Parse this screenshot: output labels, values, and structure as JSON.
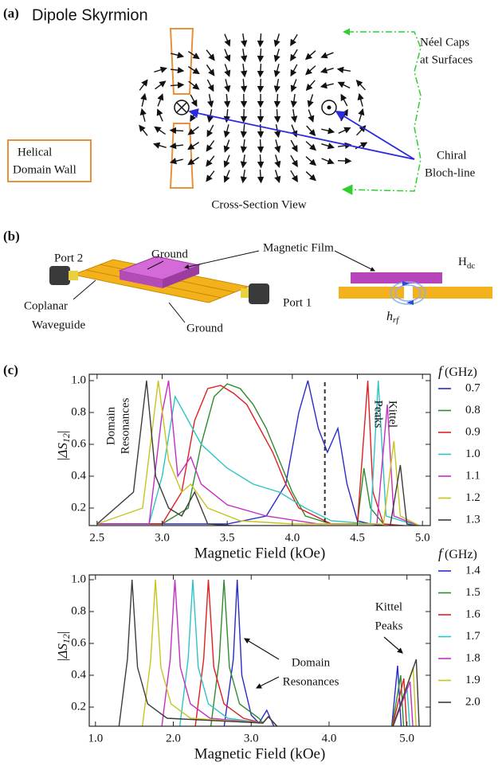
{
  "panel_a": {
    "label": "(a)",
    "title": "Dipole Skyrmion",
    "neel_caps": [
      "Néel Caps",
      "at Surfaces"
    ],
    "helical_wall": [
      "Helical",
      "Domain Wall"
    ],
    "bloch_line": [
      "Chiral",
      "Bloch-line"
    ],
    "view": "Cross-Section View"
  },
  "panel_b": {
    "label": "(b)",
    "port2": "Port 2",
    "ground_top": "Ground",
    "magnetic_film": "Magnetic Film",
    "port1": "Port 1",
    "waveguide": [
      "Coplanar",
      "Waveguide"
    ],
    "ground_bottom": "Ground",
    "h_dc": {
      "base": "H",
      "sub": "dc"
    },
    "h_rf": {
      "base": "h",
      "sub": "rf"
    }
  },
  "panel_c_label": "(c)",
  "chart_data": [
    {
      "type": "line",
      "xlabel": "Magnetic Field (kOe)",
      "ylabel": {
        "base": "|ΔS",
        "sub": "12",
        "end": "|"
      },
      "legend_title": {
        "var": "f",
        "unit": "(GHz)"
      },
      "xlim": [
        2.44,
        5.06
      ],
      "ylim": [
        0.09,
        1.04
      ],
      "xticks": [
        2.5,
        {
          "value": 3,
          "label": "3.0"
        },
        3.5,
        {
          "value": 4,
          "label": "4.0"
        },
        4.5,
        {
          "value": 5,
          "label": "5.0"
        }
      ],
      "yticks": [
        0.2,
        0.4,
        0.6,
        0.8,
        {
          "value": 1,
          "label": "1.0"
        }
      ],
      "vline": 4.25,
      "annotations": [
        [
          "Domain",
          "Resonances"
        ],
        [
          "Kittel",
          "Peaks"
        ]
      ],
      "series": [
        {
          "name": "0.7",
          "color": "#2b2bc8",
          "x": [
            2.5,
            3.0,
            3.5,
            3.8,
            3.95,
            4.05,
            4.12,
            4.2,
            4.27,
            4.35,
            4.42,
            4.5,
            4.6,
            4.8,
            5.0
          ],
          "values": [
            0.1,
            0.1,
            0.1,
            0.15,
            0.35,
            0.8,
            1.0,
            0.7,
            0.55,
            0.7,
            0.35,
            0.12,
            0.1,
            0.08,
            0.08
          ]
        },
        {
          "name": "0.8",
          "color": "#2e8b2e",
          "x": [
            2.5,
            3.0,
            3.2,
            3.3,
            3.4,
            3.5,
            3.6,
            3.7,
            3.8,
            3.9,
            4.0,
            4.1,
            4.3,
            4.5,
            4.55,
            4.6,
            4.7,
            5.0
          ],
          "values": [
            0.1,
            0.1,
            0.2,
            0.6,
            0.9,
            0.98,
            0.95,
            0.85,
            0.7,
            0.5,
            0.3,
            0.15,
            0.1,
            0.1,
            0.45,
            0.2,
            0.1,
            0.08
          ]
        },
        {
          "name": "0.9",
          "color": "#e02020",
          "x": [
            2.5,
            3.0,
            3.15,
            3.25,
            3.35,
            3.45,
            3.55,
            3.65,
            3.75,
            3.85,
            3.95,
            4.05,
            4.3,
            4.5,
            4.58,
            4.62,
            4.7,
            5.0
          ],
          "values": [
            0.1,
            0.1,
            0.3,
            0.75,
            0.95,
            0.97,
            0.92,
            0.85,
            0.7,
            0.55,
            0.35,
            0.2,
            0.1,
            0.1,
            1.0,
            0.3,
            0.1,
            0.08
          ]
        },
        {
          "name": "1.0",
          "color": "#2ec4c4",
          "x": [
            2.5,
            2.9,
            3.0,
            3.1,
            3.2,
            3.3,
            3.5,
            3.7,
            3.9,
            4.1,
            4.3,
            4.6,
            4.66,
            4.72,
            5.0
          ],
          "values": [
            0.1,
            0.1,
            0.4,
            0.9,
            0.75,
            0.6,
            0.45,
            0.35,
            0.3,
            0.2,
            0.12,
            0.1,
            1.0,
            0.15,
            0.08
          ]
        },
        {
          "name": "1.1",
          "color": "#c42ec4",
          "x": [
            2.5,
            2.9,
            3.0,
            3.05,
            3.12,
            3.22,
            3.3,
            3.5,
            3.8,
            4.2,
            4.65,
            4.73,
            4.78,
            5.0
          ],
          "values": [
            0.1,
            0.1,
            0.8,
            1.0,
            0.4,
            0.52,
            0.35,
            0.22,
            0.15,
            0.1,
            0.1,
            0.85,
            0.15,
            0.08
          ]
        },
        {
          "name": "1.2",
          "color": "#c8c41e",
          "x": [
            2.5,
            2.85,
            2.97,
            3.05,
            3.15,
            3.22,
            3.35,
            3.6,
            4.0,
            4.7,
            4.78,
            4.83,
            5.0
          ],
          "values": [
            0.1,
            0.2,
            1.0,
            0.5,
            0.3,
            0.35,
            0.2,
            0.12,
            0.1,
            0.1,
            0.62,
            0.15,
            0.08
          ]
        },
        {
          "name": "1.3",
          "color": "#3c3c3c",
          "x": [
            2.5,
            2.78,
            2.88,
            2.95,
            3.05,
            3.15,
            3.25,
            3.35,
            3.7,
            4.75,
            4.83,
            4.88,
            5.0
          ],
          "values": [
            0.1,
            0.3,
            1.0,
            0.4,
            0.2,
            0.15,
            0.3,
            0.1,
            0.08,
            0.08,
            0.47,
            0.1,
            0.08
          ]
        }
      ]
    },
    {
      "type": "line",
      "xlabel": "Magnetic Field (kOe)",
      "ylabel": {
        "base": "|ΔS",
        "sub": "12",
        "end": "|"
      },
      "legend_title": {
        "var": "f",
        "unit": "(GHz)"
      },
      "xlim": [
        0.92,
        5.3
      ],
      "ylim": [
        0.08,
        1.03
      ],
      "xticks": [
        {
          "value": 1,
          "label": "1.0"
        },
        {
          "value": 2,
          "label": "2.0"
        },
        {
          "value": 3,
          "label": "3.0"
        },
        {
          "value": 4,
          "label": "4.0"
        },
        {
          "value": 5,
          "label": "5.0"
        }
      ],
      "yticks": [
        0.2,
        0.4,
        0.6,
        0.8,
        {
          "value": 1,
          "label": "1.0"
        }
      ],
      "annotations": [
        [
          "Kittel",
          "Peaks"
        ],
        [
          "Domain",
          "Resonances"
        ]
      ],
      "series": [
        {
          "name": "1.4",
          "color": "#2b2bc8",
          "x": [
            1.0,
            2.65,
            2.77,
            2.82,
            2.88,
            3.0,
            3.1,
            3.2,
            3.3,
            4.8,
            4.88,
            4.93,
            5.25
          ],
          "values": [
            0.05,
            0.07,
            0.5,
            1.0,
            0.4,
            0.15,
            0.1,
            0.18,
            0.07,
            0.05,
            0.46,
            0.05,
            0.05
          ]
        },
        {
          "name": "1.5",
          "color": "#2e8b2e",
          "x": [
            1.0,
            2.48,
            2.59,
            2.65,
            2.72,
            2.85,
            3.1,
            3.15,
            3.22,
            3.35,
            4.8,
            4.92,
            4.96,
            5.25
          ],
          "values": [
            0.05,
            0.07,
            0.5,
            1.0,
            0.45,
            0.22,
            0.13,
            0.1,
            0.14,
            0.07,
            0.05,
            0.4,
            0.05,
            0.05
          ]
        },
        {
          "name": "1.6",
          "color": "#e02020",
          "x": [
            1.0,
            2.28,
            2.39,
            2.45,
            2.52,
            2.65,
            2.9,
            3.15,
            3.22,
            3.35,
            4.8,
            4.96,
            5.0,
            5.25
          ],
          "values": [
            0.05,
            0.07,
            0.5,
            1.0,
            0.45,
            0.22,
            0.13,
            0.1,
            0.14,
            0.07,
            0.05,
            0.38,
            0.05,
            0.05
          ]
        },
        {
          "name": "1.7",
          "color": "#2ec4c4",
          "x": [
            1.0,
            2.08,
            2.19,
            2.25,
            2.32,
            2.45,
            2.7,
            3.15,
            3.22,
            3.35,
            4.8,
            5.0,
            5.04,
            5.25
          ],
          "values": [
            0.05,
            0.07,
            0.5,
            1.0,
            0.45,
            0.22,
            0.13,
            0.1,
            0.14,
            0.07,
            0.05,
            0.33,
            0.05,
            0.05
          ]
        },
        {
          "name": "1.8",
          "color": "#c42ec4",
          "x": [
            1.0,
            1.85,
            1.96,
            2.02,
            2.09,
            2.22,
            2.47,
            3.15,
            3.22,
            3.35,
            4.8,
            5.04,
            5.08,
            5.25
          ],
          "values": [
            0.05,
            0.07,
            0.5,
            1.0,
            0.45,
            0.22,
            0.13,
            0.1,
            0.14,
            0.07,
            0.05,
            0.36,
            0.05,
            0.05
          ]
        },
        {
          "name": "1.9",
          "color": "#c8c41e",
          "x": [
            1.0,
            1.6,
            1.71,
            1.77,
            1.84,
            1.97,
            2.22,
            3.15,
            3.22,
            3.35,
            4.8,
            5.08,
            5.12,
            5.25
          ],
          "values": [
            0.05,
            0.07,
            0.5,
            1.0,
            0.45,
            0.22,
            0.13,
            0.1,
            0.14,
            0.07,
            0.05,
            0.45,
            0.05,
            0.05
          ]
        },
        {
          "name": "2.0",
          "color": "#3c3c3c",
          "x": [
            1.0,
            1.3,
            1.41,
            1.47,
            1.54,
            1.67,
            1.92,
            3.15,
            3.22,
            3.35,
            4.8,
            5.12,
            5.16,
            5.25
          ],
          "values": [
            0.05,
            0.07,
            0.5,
            1.0,
            0.45,
            0.22,
            0.13,
            0.1,
            0.14,
            0.07,
            0.05,
            0.5,
            0.05,
            0.05
          ]
        }
      ]
    }
  ]
}
